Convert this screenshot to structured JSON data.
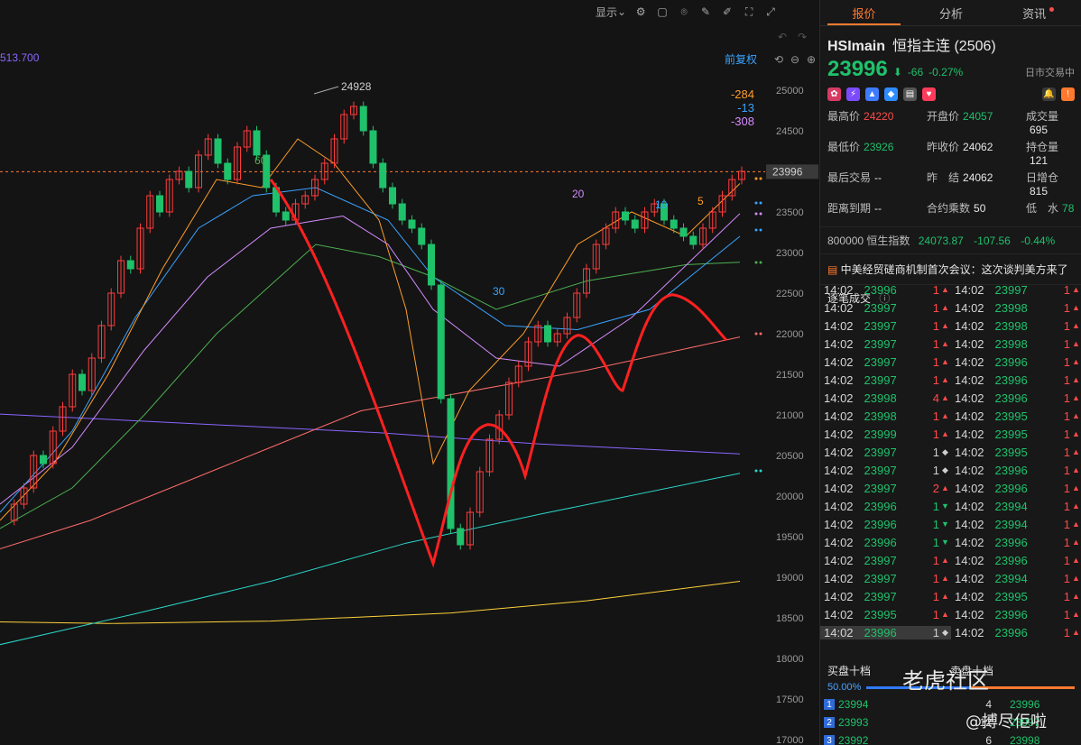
{
  "toolbar": {
    "display_label": "显示",
    "icons": [
      "settings-icon",
      "layout-icon",
      "camera-icon",
      "edit-icon",
      "pen-icon",
      "fullscreen-icon",
      "expand-icon"
    ]
  },
  "chart": {
    "top_left_price": "513.700",
    "restore_label": "前复权",
    "high_marker": "24928",
    "side_diffs": [
      "-284",
      "-13",
      "-308"
    ],
    "last_price_tag": "23996",
    "ma_labels": [
      "60",
      "30",
      "20",
      "10",
      "5"
    ],
    "y_ticks": [
      "25000",
      "24500",
      "24000",
      "23500",
      "23000",
      "22500",
      "22000",
      "21500",
      "21000",
      "20500",
      "20000",
      "19500",
      "19000",
      "18500",
      "18000",
      "17500",
      "17000"
    ],
    "colors": {
      "up": "#ff3b3b",
      "down": "#1fc16b",
      "ma5": "#ff9d2a",
      "ma10": "#3aa3ff",
      "ma20": "#d58bff",
      "ma30": "#9acd32",
      "ma60": "#2bd6c8",
      "ma120": "#ff6b6b",
      "ma250": "#ffd23a",
      "drawn": "#ff2020",
      "purple": "#8a66ff"
    }
  },
  "chart_data": {
    "type": "candlestick",
    "ylim": [
      17000,
      25000
    ],
    "visible_high": 24928,
    "last": 23996
  },
  "tabs": [
    "报价",
    "分析",
    "资讯"
  ],
  "symbol": {
    "code": "HSImain",
    "name": "恒指主连 (2506)"
  },
  "price": {
    "last": "23996",
    "arrow": "⬇",
    "change": "-66",
    "change_pct": "-0.27%",
    "status": "日市交易中"
  },
  "stats": [
    {
      "label": "最高价",
      "value": "24220",
      "cls": "red"
    },
    {
      "label": "开盘价",
      "value": "24057",
      "cls": "green"
    },
    {
      "label": "成交量",
      "value": "695",
      "cls": "white"
    },
    {
      "label": "最低价",
      "value": "23926",
      "cls": "green"
    },
    {
      "label": "昨收价",
      "value": "24062",
      "cls": "white"
    },
    {
      "label": "持仓量",
      "value": "121",
      "cls": "white"
    },
    {
      "label": "最后交易",
      "value": "--",
      "cls": "white"
    },
    {
      "label": "昨　结",
      "value": "24062",
      "cls": "white"
    },
    {
      "label": "日增仓",
      "value": "815",
      "cls": "white"
    },
    {
      "label": "距离到期",
      "value": "--",
      "cls": "white"
    },
    {
      "label": "合约乘数",
      "value": "50",
      "cls": "white"
    },
    {
      "label": "低　水",
      "value": "78",
      "cls": "green"
    }
  ],
  "index_row": {
    "code": "800000",
    "name": "恒生指数",
    "value": "24073.87",
    "change": "-107.56",
    "pct": "-0.44%"
  },
  "news": "中美经贸磋商机制首次会议：这次谈判美方来了",
  "trades_title": "逐笔成交",
  "trades": [
    [
      {
        "t": "14:02",
        "p": "23996",
        "v": "1",
        "d": "up"
      },
      {
        "t": "14:02",
        "p": "23997",
        "v": "1",
        "d": "up"
      }
    ],
    [
      {
        "t": "14:02",
        "p": "23997",
        "v": "1",
        "d": "up"
      },
      {
        "t": "14:02",
        "p": "23998",
        "v": "1",
        "d": "up"
      }
    ],
    [
      {
        "t": "14:02",
        "p": "23997",
        "v": "1",
        "d": "up"
      },
      {
        "t": "14:02",
        "p": "23998",
        "v": "1",
        "d": "up"
      }
    ],
    [
      {
        "t": "14:02",
        "p": "23997",
        "v": "1",
        "d": "up"
      },
      {
        "t": "14:02",
        "p": "23998",
        "v": "1",
        "d": "up"
      }
    ],
    [
      {
        "t": "14:02",
        "p": "23997",
        "v": "1",
        "d": "up"
      },
      {
        "t": "14:02",
        "p": "23996",
        "v": "1",
        "d": "up"
      }
    ],
    [
      {
        "t": "14:02",
        "p": "23997",
        "v": "1",
        "d": "up"
      },
      {
        "t": "14:02",
        "p": "23996",
        "v": "1",
        "d": "up"
      }
    ],
    [
      {
        "t": "14:02",
        "p": "23998",
        "v": "4",
        "d": "up"
      },
      {
        "t": "14:02",
        "p": "23996",
        "v": "1",
        "d": "up"
      }
    ],
    [
      {
        "t": "14:02",
        "p": "23998",
        "v": "1",
        "d": "up"
      },
      {
        "t": "14:02",
        "p": "23995",
        "v": "1",
        "d": "up"
      }
    ],
    [
      {
        "t": "14:02",
        "p": "23999",
        "v": "1",
        "d": "up"
      },
      {
        "t": "14:02",
        "p": "23995",
        "v": "1",
        "d": "up"
      }
    ],
    [
      {
        "t": "14:02",
        "p": "23997",
        "v": "1",
        "d": "neu"
      },
      {
        "t": "14:02",
        "p": "23995",
        "v": "1",
        "d": "up"
      }
    ],
    [
      {
        "t": "14:02",
        "p": "23997",
        "v": "1",
        "d": "neu"
      },
      {
        "t": "14:02",
        "p": "23996",
        "v": "1",
        "d": "up"
      }
    ],
    [
      {
        "t": "14:02",
        "p": "23997",
        "v": "2",
        "d": "up"
      },
      {
        "t": "14:02",
        "p": "23996",
        "v": "1",
        "d": "up"
      }
    ],
    [
      {
        "t": "14:02",
        "p": "23996",
        "v": "1",
        "d": "down"
      },
      {
        "t": "14:02",
        "p": "23994",
        "v": "1",
        "d": "up"
      }
    ],
    [
      {
        "t": "14:02",
        "p": "23996",
        "v": "1",
        "d": "down"
      },
      {
        "t": "14:02",
        "p": "23994",
        "v": "1",
        "d": "up"
      }
    ],
    [
      {
        "t": "14:02",
        "p": "23996",
        "v": "1",
        "d": "down"
      },
      {
        "t": "14:02",
        "p": "23996",
        "v": "1",
        "d": "up"
      }
    ],
    [
      {
        "t": "14:02",
        "p": "23997",
        "v": "1",
        "d": "up"
      },
      {
        "t": "14:02",
        "p": "23996",
        "v": "1",
        "d": "up"
      }
    ],
    [
      {
        "t": "14:02",
        "p": "23997",
        "v": "1",
        "d": "up"
      },
      {
        "t": "14:02",
        "p": "23994",
        "v": "1",
        "d": "up"
      }
    ],
    [
      {
        "t": "14:02",
        "p": "23997",
        "v": "1",
        "d": "up"
      },
      {
        "t": "14:02",
        "p": "23995",
        "v": "1",
        "d": "up"
      }
    ],
    [
      {
        "t": "14:02",
        "p": "23995",
        "v": "1",
        "d": "up"
      },
      {
        "t": "14:02",
        "p": "23996",
        "v": "1",
        "d": "up"
      }
    ],
    [
      {
        "t": "14:02",
        "p": "23996",
        "v": "1",
        "d": "neu"
      },
      {
        "t": "14:02",
        "p": "23996",
        "v": "1",
        "d": "up"
      }
    ]
  ],
  "orderbook": {
    "bid_title": "买盘十档",
    "ask_title": "卖盘十档",
    "bid_ratio": "50.00%",
    "rows": [
      {
        "idx": "1",
        "bid": "23994",
        "bid_vol": "4",
        "ask": "23996"
      },
      {
        "idx": "2",
        "bid": "23993",
        "bid_vol": "12",
        "ask": "23997"
      },
      {
        "idx": "3",
        "bid": "23992",
        "bid_vol": "6",
        "ask": "23998"
      }
    ]
  },
  "watermark": {
    "brand": "老虎社区",
    "user": "@搏尽佢啦"
  }
}
